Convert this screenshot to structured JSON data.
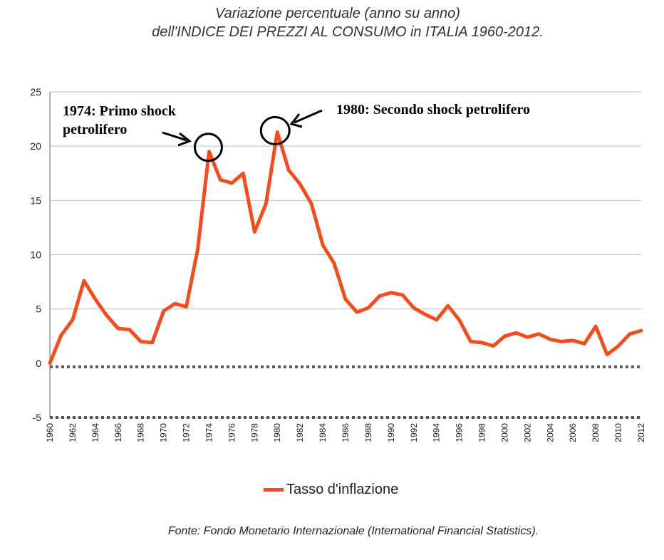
{
  "title_line1": "Variazione percentuale (anno su anno)",
  "title_line2": "dell'INDICE DEI PREZZI AL CONSUMO in ITALIA 1960-2012.",
  "source": "Fonte: Fondo Monetario Internazionale (International Financial Statistics).",
  "colors": {
    "line": "#f04e1f",
    "grid": "#bfbfbf",
    "axis": "#7f7f7f"
  },
  "chart_data": {
    "type": "line",
    "title": "Variazione percentuale (anno su anno) dell'INDICE DEI PREZZI AL CONSUMO in ITALIA 1960-2012.",
    "xlabel": "",
    "ylabel": "",
    "ylim": [
      -5,
      25
    ],
    "yticks": [
      "25",
      "20",
      "15",
      "10",
      "5",
      "0",
      "-5"
    ],
    "xticks": [
      "1960",
      "1962",
      "1964",
      "1966",
      "1968",
      "1970",
      "1972",
      "1974",
      "1976",
      "1978",
      "1980",
      "1982",
      "1984",
      "1986",
      "1988",
      "1990",
      "1992",
      "1994",
      "1996",
      "1998",
      "2000",
      "2002",
      "2004",
      "2006",
      "2008",
      "2010",
      "2012"
    ],
    "legend": "bottom",
    "series": [
      {
        "name": "Tasso d'inflazione",
        "x": [
          1960,
          1961,
          1962,
          1963,
          1964,
          1965,
          1966,
          1967,
          1968,
          1969,
          1970,
          1971,
          1972,
          1973,
          1974,
          1975,
          1976,
          1977,
          1978,
          1979,
          1980,
          1981,
          1982,
          1983,
          1984,
          1985,
          1986,
          1987,
          1988,
          1989,
          1990,
          1991,
          1992,
          1993,
          1994,
          1995,
          1996,
          1997,
          1998,
          1999,
          2000,
          2001,
          2002,
          2003,
          2004,
          2005,
          2006,
          2007,
          2008,
          2009,
          2010,
          2011,
          2012
        ],
        "values": [
          0.0,
          2.6,
          4.0,
          7.6,
          5.9,
          4.4,
          3.2,
          3.1,
          2.0,
          1.9,
          4.8,
          5.5,
          5.2,
          10.5,
          19.5,
          16.9,
          16.6,
          17.5,
          12.1,
          14.7,
          21.3,
          17.8,
          16.5,
          14.7,
          10.9,
          9.2,
          5.9,
          4.7,
          5.1,
          6.2,
          6.5,
          6.3,
          5.1,
          4.5,
          4.0,
          5.3,
          4.0,
          2.0,
          1.9,
          1.6,
          2.5,
          2.8,
          2.4,
          2.7,
          2.2,
          2.0,
          2.1,
          1.8,
          3.4,
          0.8,
          1.6,
          2.7,
          3.0
        ]
      }
    ],
    "annotations": [
      {
        "lines": [
          "1974: Primo shock",
          "petrolifero"
        ],
        "target_year": 1974
      },
      {
        "lines": [
          "1980: Secondo shock petrolifero"
        ],
        "target_year": 1980
      }
    ]
  }
}
